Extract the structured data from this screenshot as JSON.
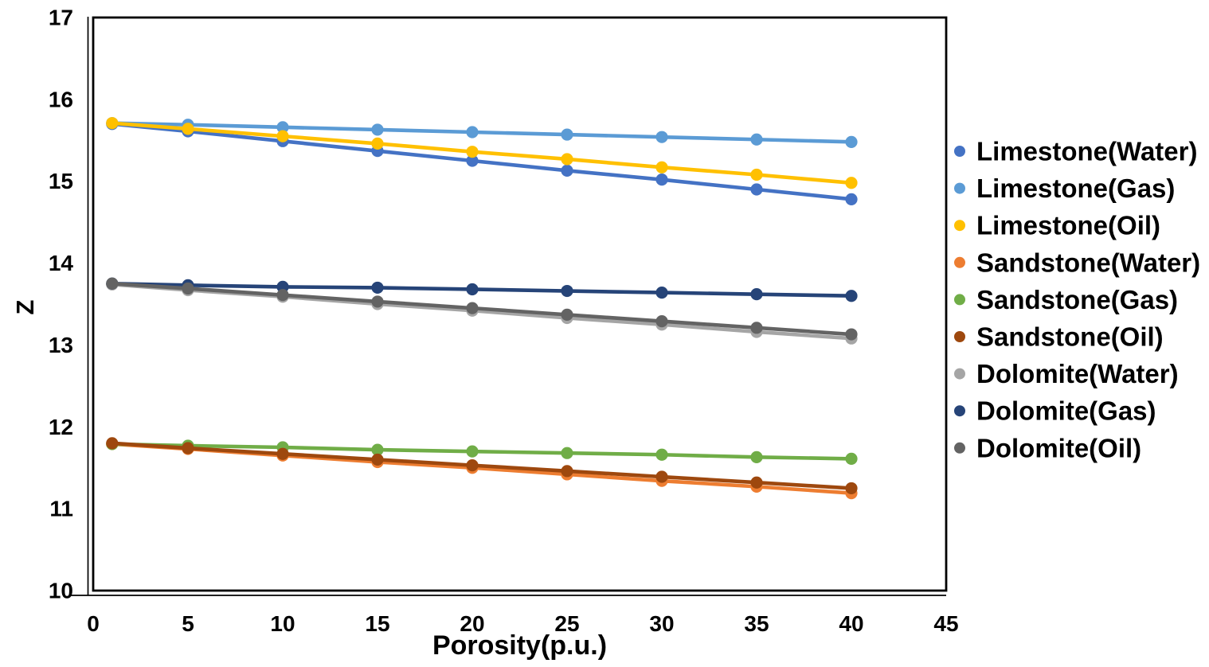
{
  "figure": {
    "background": "#ffffff",
    "border_color": "#000000"
  },
  "chart_data": {
    "type": "line",
    "title": "",
    "xlabel": "Porosity(p.u.)",
    "ylabel": "Z",
    "xlim": [
      0,
      45
    ],
    "ylim": [
      10,
      17
    ],
    "x_ticks": [
      0,
      5,
      10,
      15,
      20,
      25,
      30,
      35,
      40,
      45
    ],
    "y_ticks": [
      10,
      11,
      12,
      13,
      14,
      15,
      16,
      17
    ],
    "grid": "off",
    "legend_position": "right-outside",
    "marker": "circle",
    "x": [
      1,
      5,
      10,
      15,
      20,
      25,
      30,
      35,
      40
    ],
    "series": [
      {
        "name": "Limestone(Water)",
        "color": "#4472C4",
        "values": [
          15.7,
          15.61,
          15.49,
          15.37,
          15.25,
          15.13,
          15.02,
          14.9,
          14.78
        ]
      },
      {
        "name": "Limestone(Gas)",
        "color": "#5B9BD5",
        "values": [
          15.71,
          15.69,
          15.66,
          15.63,
          15.6,
          15.57,
          15.54,
          15.51,
          15.48
        ]
      },
      {
        "name": "Limestone(Oil)",
        "color": "#FFC000",
        "values": [
          15.71,
          15.64,
          15.55,
          15.46,
          15.36,
          15.27,
          15.17,
          15.08,
          14.98
        ]
      },
      {
        "name": "Sandstone(Water)",
        "color": "#ED7D31",
        "values": [
          11.79,
          11.73,
          11.65,
          11.57,
          11.5,
          11.42,
          11.34,
          11.27,
          11.19
        ]
      },
      {
        "name": "Sandstone(Gas)",
        "color": "#70AD47",
        "values": [
          11.79,
          11.77,
          11.75,
          11.72,
          11.7,
          11.68,
          11.66,
          11.63,
          11.61
        ]
      },
      {
        "name": "Sandstone(Oil)",
        "color": "#9E480E",
        "values": [
          11.8,
          11.74,
          11.67,
          11.6,
          11.53,
          11.46,
          11.39,
          11.32,
          11.25
        ]
      },
      {
        "name": "Dolomite(Water)",
        "color": "#A5A5A5",
        "values": [
          13.74,
          13.67,
          13.59,
          13.5,
          13.42,
          13.33,
          13.25,
          13.16,
          13.08
        ]
      },
      {
        "name": "Dolomite(Gas)",
        "color": "#264478",
        "values": [
          13.75,
          13.73,
          13.71,
          13.7,
          13.68,
          13.66,
          13.64,
          13.62,
          13.6
        ]
      },
      {
        "name": "Dolomite(Oil)",
        "color": "#636363",
        "values": [
          13.75,
          13.69,
          13.61,
          13.53,
          13.45,
          13.37,
          13.29,
          13.21,
          13.13
        ]
      }
    ]
  }
}
